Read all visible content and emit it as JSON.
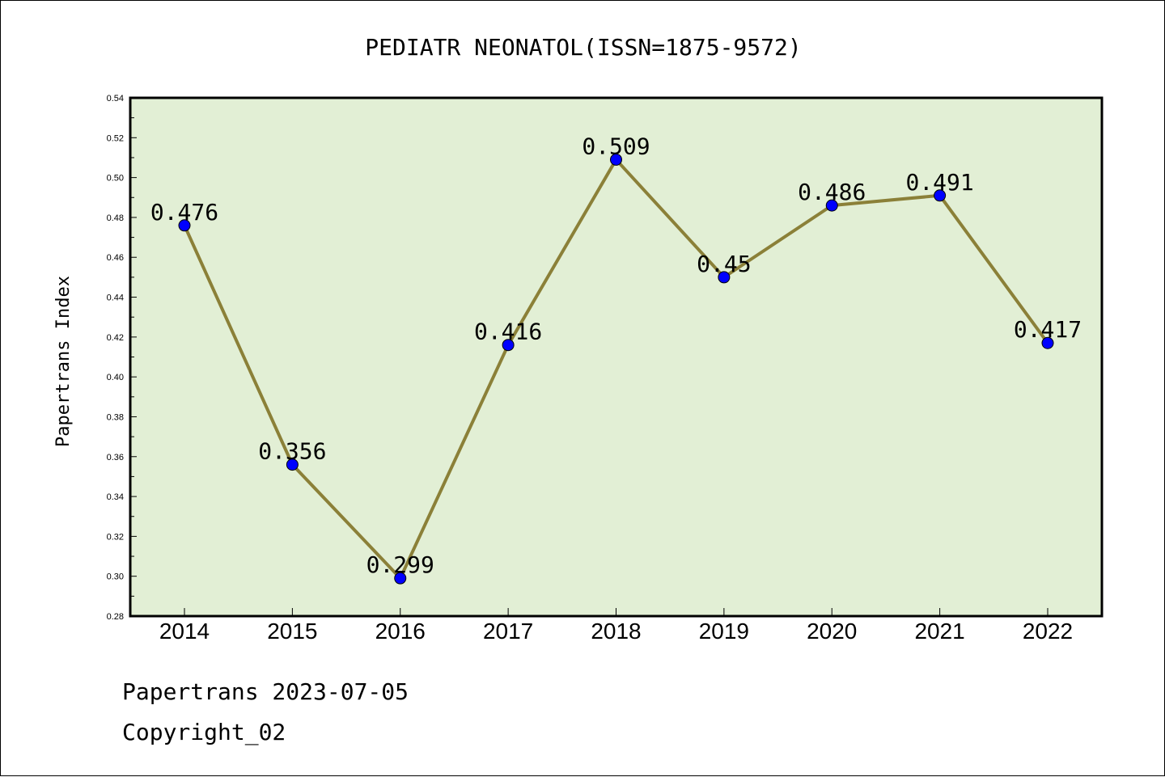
{
  "chart_data": {
    "type": "line",
    "title": "PEDIATR NEONATOL(ISSN=1875-9572)",
    "ylabel": "Papertrans Index",
    "xlabel": "",
    "x": [
      "2014",
      "2015",
      "2016",
      "2017",
      "2018",
      "2019",
      "2020",
      "2021",
      "2022"
    ],
    "series": [
      {
        "values": [
          0.476,
          0.356,
          0.299,
          0.416,
          0.509,
          0.45,
          0.486,
          0.491,
          0.417
        ],
        "labels": [
          "0.476",
          "0.356",
          "0.299",
          "0.416",
          "0.509",
          "0.45",
          "0.486",
          "0.491",
          "0.417"
        ]
      }
    ],
    "ylim": [
      0.28,
      0.54
    ],
    "yticks": [
      "0.28",
      "0.30",
      "0.32",
      "0.34",
      "0.36",
      "0.38",
      "0.40",
      "0.42",
      "0.44",
      "0.46",
      "0.48",
      "0.50",
      "0.52",
      "0.54"
    ],
    "grid": false,
    "colors": {
      "plot_background": "#e2efd5",
      "line": "#8b8038",
      "marker": "#0000ff"
    }
  },
  "footer": {
    "line1": "Papertrans 2023-07-05",
    "line2": "Copyright_02"
  }
}
